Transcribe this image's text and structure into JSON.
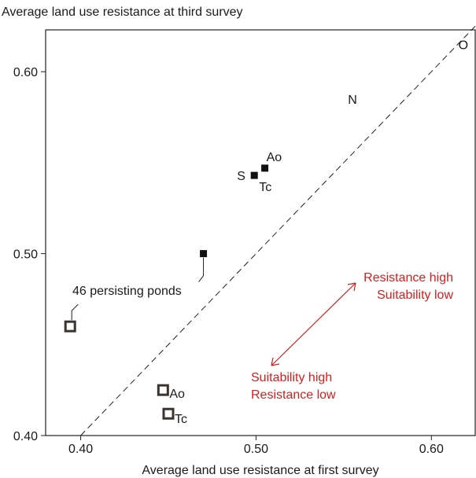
{
  "chart_data": {
    "type": "scatter",
    "title": "Average land use resistance at third survey",
    "xlabel": "Average land use resistance at first survey",
    "ylabel": "",
    "xlim": [
      0.38,
      0.625
    ],
    "ylim": [
      0.4,
      0.623
    ],
    "xticks": [
      {
        "v": 0.4,
        "label": "0.40"
      },
      {
        "v": 0.5,
        "label": "0.50"
      },
      {
        "v": 0.6,
        "label": "0.60"
      }
    ],
    "yticks": [
      {
        "v": 0.4,
        "label": "0.40"
      },
      {
        "v": 0.5,
        "label": "0.50"
      },
      {
        "v": 0.6,
        "label": "0.60"
      }
    ],
    "diagonal": [
      [
        0.38,
        0.38
      ],
      [
        0.625,
        0.625
      ]
    ],
    "filled_points": [
      {
        "x": 0.505,
        "y": 0.547,
        "label": "Ao"
      },
      {
        "x": 0.499,
        "y": 0.543,
        "label": "S"
      },
      {
        "x": 0.499,
        "y": 0.543,
        "label": "Tc"
      },
      {
        "x": 0.47,
        "y": 0.5,
        "label": ""
      }
    ],
    "open_points": [
      {
        "x": 0.394,
        "y": 0.46,
        "label": ""
      },
      {
        "x": 0.447,
        "y": 0.425,
        "label": "Ao"
      },
      {
        "x": 0.45,
        "y": 0.412,
        "label": "Tc"
      }
    ],
    "text_points": [
      {
        "x": 0.555,
        "y": 0.585,
        "label": "N"
      },
      {
        "x": 0.62,
        "y": 0.615,
        "label": "O"
      }
    ],
    "annotation_persisting": "46 persisting ponds",
    "arrow_high": [
      "Resistance high",
      "Suitability low"
    ],
    "arrow_low": [
      "Suitability high",
      "Resistance low"
    ],
    "annotation_color": "#d21f1f"
  }
}
